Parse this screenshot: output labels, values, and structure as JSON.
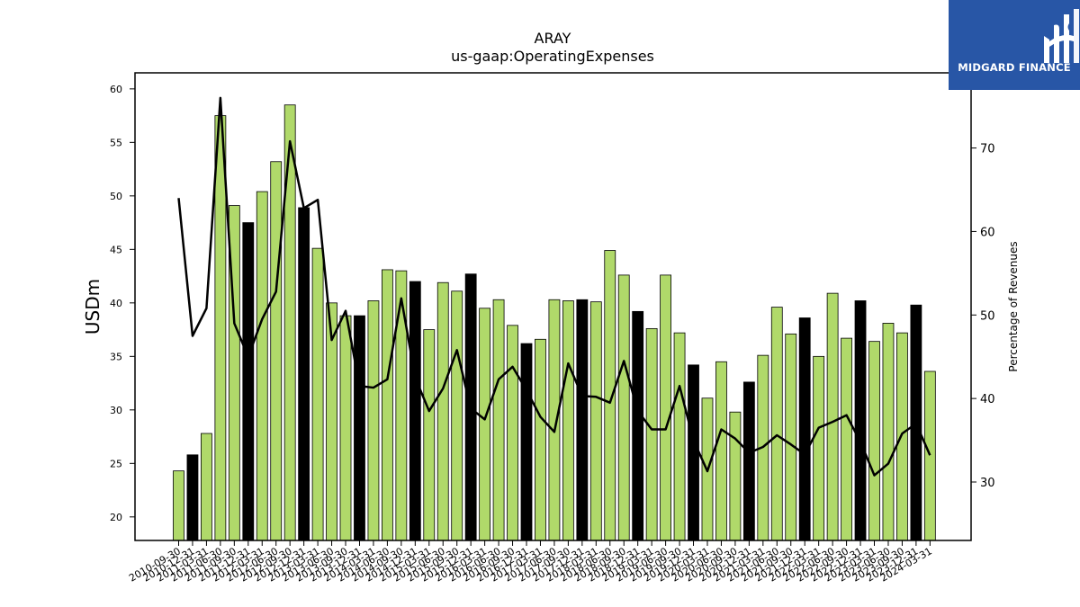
{
  "chart_data": {
    "type": "bar",
    "title": "ARAY",
    "subtitle": "us-gaap:OperatingExpenses",
    "ylabel": "USDm",
    "y2label": "Percentage of Revenues",
    "ylim": [
      17.8,
      61.5
    ],
    "y2lim": [
      23.0,
      79.0
    ],
    "yticks": [
      20,
      25,
      30,
      35,
      40,
      45,
      50,
      55,
      60
    ],
    "y2ticks": [
      30,
      40,
      50,
      60,
      70
    ],
    "grid": false,
    "categories": [
      "2010-09-30",
      "2010-12-31",
      "2011-03-31",
      "2011-06-30",
      "2011-09-30",
      "2011-12-31",
      "2012-03-31",
      "2012-06-30",
      "2012-09-30",
      "2012-12-31",
      "2013-03-31",
      "2013-06-30",
      "2013-09-30",
      "2013-12-31",
      "2014-03-31",
      "2014-06-30",
      "2014-09-30",
      "2014-12-31",
      "2015-03-31",
      "2015-06-30",
      "2015-09-30",
      "2015-12-31",
      "2016-03-31",
      "2016-06-30",
      "2016-09-30",
      "2016-12-31",
      "2017-03-31",
      "2017-06-30",
      "2017-09-30",
      "2017-12-31",
      "2018-03-31",
      "2018-06-30",
      "2018-09-30",
      "2018-12-31",
      "2019-03-31",
      "2019-06-30",
      "2019-09-30",
      "2019-12-31",
      "2020-03-31",
      "2020-06-30",
      "2020-09-30",
      "2020-12-31",
      "2021-03-31",
      "2021-06-30",
      "2021-09-30",
      "2021-12-31",
      "2022-03-31",
      "2022-06-30",
      "2022-09-30",
      "2022-12-31",
      "2023-03-31",
      "2023-06-30",
      "2023-09-30",
      "2023-12-31",
      "2024-03-31"
    ],
    "series": [
      {
        "type": "bar",
        "values": [
          24.3,
          25.8,
          27.8,
          57.5,
          49.1,
          47.5,
          50.4,
          53.2,
          58.5,
          48.9,
          45.1,
          40.0,
          38.8,
          38.8,
          40.2,
          43.1,
          43.0,
          42.0,
          37.5,
          41.9,
          41.1,
          42.7,
          39.5,
          40.3,
          37.9,
          36.2,
          36.6,
          40.3,
          40.2,
          40.3,
          40.1,
          44.9,
          42.6,
          39.2,
          37.6,
          42.6,
          37.2,
          34.2,
          31.1,
          34.5,
          29.8,
          32.6,
          35.1,
          39.6,
          37.1,
          38.6,
          35.0,
          40.9,
          36.7,
          40.2,
          36.4,
          38.1,
          37.2,
          39.8,
          33.6
        ],
        "highlight": [
          false,
          true,
          false,
          false,
          false,
          true,
          false,
          false,
          false,
          true,
          false,
          false,
          false,
          true,
          false,
          false,
          false,
          true,
          false,
          false,
          false,
          true,
          false,
          false,
          false,
          true,
          false,
          false,
          false,
          true,
          false,
          false,
          false,
          true,
          false,
          false,
          false,
          true,
          false,
          false,
          false,
          true,
          false,
          false,
          false,
          true,
          false,
          false,
          false,
          true,
          false,
          false,
          false,
          true,
          false
        ],
        "color": "#b0d96a",
        "highlight_color": "#000000"
      },
      {
        "type": "line",
        "axis": "right",
        "values": [
          64.0,
          47.5,
          50.8,
          76.0,
          49.0,
          45.0,
          49.5,
          52.8,
          70.8,
          62.8,
          63.8,
          47.0,
          50.5,
          41.5,
          41.3,
          42.3,
          52.0,
          42.5,
          38.5,
          41.2,
          45.8,
          38.8,
          37.5,
          42.3,
          43.8,
          41.0,
          37.8,
          36.0,
          44.2,
          40.3,
          40.2,
          39.5,
          44.5,
          38.5,
          36.3,
          36.3,
          41.5,
          35.0,
          31.3,
          36.3,
          35.2,
          33.5,
          34.2,
          35.6,
          34.5,
          33.3,
          36.5,
          37.2,
          38.0,
          34.8,
          30.8,
          32.2,
          35.8,
          37.0,
          33.2
        ],
        "color": "#000000"
      }
    ]
  },
  "logo": {
    "text": "MIDGARD FINANCE",
    "color": "#2856a6"
  }
}
